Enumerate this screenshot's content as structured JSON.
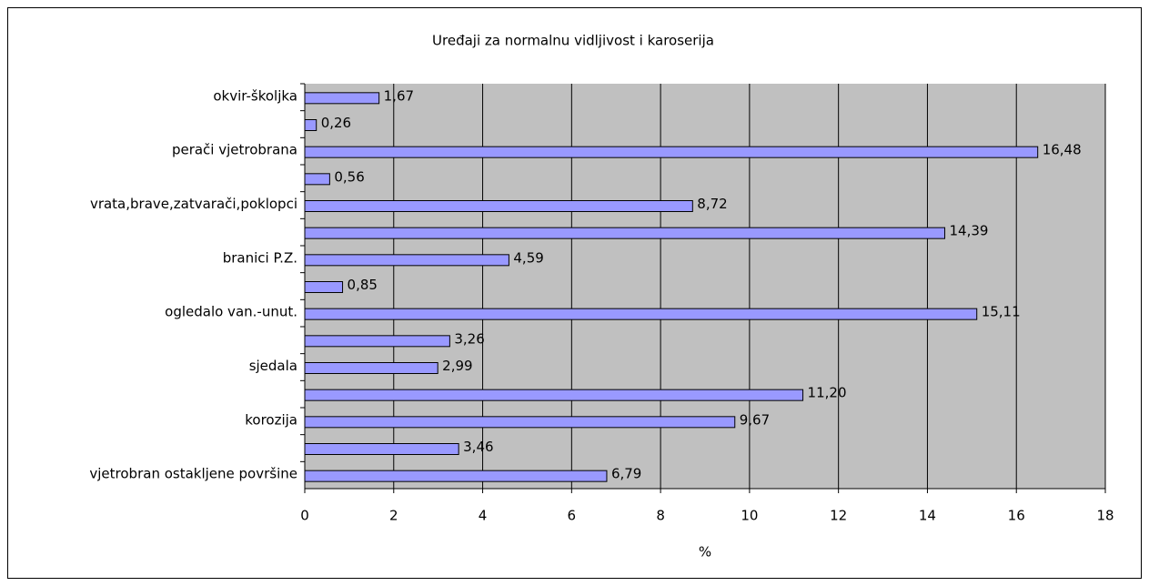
{
  "chart_data": {
    "type": "bar",
    "orientation": "horizontal",
    "title": "Uređaji za normalnu vidljivost i karoserija",
    "xlabel": "%",
    "categories": [
      "okvir-školjka",
      null,
      "perači vjetrobrana",
      null,
      "vrata,brave,zatvarači,poklopci",
      null,
      "branici P.Z.",
      null,
      "ogledalo van.-unut.",
      null,
      "sjedala",
      null,
      "korozija",
      null,
      "vjetrobran ostakljene površine"
    ],
    "values": [
      1.67,
      0.26,
      16.48,
      0.56,
      8.72,
      14.39,
      4.59,
      0.85,
      15.11,
      3.26,
      2.99,
      11.2,
      9.67,
      3.46,
      6.79
    ],
    "value_labels": [
      "1,67",
      "0,26",
      "16,48",
      "0,56",
      "8,72",
      "14,39",
      "4,59",
      "0,85",
      "15,11",
      "3,26",
      "2,99",
      "11,20",
      "9,67",
      "3,46",
      "6,79"
    ],
    "color": "#9999ff",
    "xlim": [
      0,
      18
    ],
    "xticks": [
      0,
      2,
      4,
      6,
      8,
      10,
      12,
      14,
      16,
      18
    ],
    "grid": true
  }
}
